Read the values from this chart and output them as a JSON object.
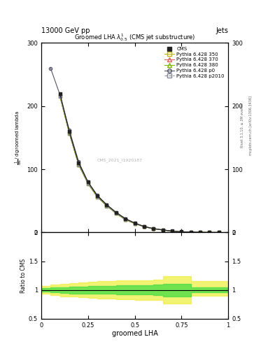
{
  "title_top": "13000 GeV pp",
  "title_right": "Jets",
  "plot_title": "Groomed LHA $\\lambda^{1}_{0.5}$ (CMS jet substructure)",
  "xlabel": "groomed LHA",
  "ylabel_ratio": "Ratio to CMS",
  "right_label1": "Rivet 3.1.10, ≥ 3M events",
  "right_label2": "mcplots.cern.ch [arXiv:1306.3436]",
  "watermark": "CMS_2021_I1920187",
  "x_data": [
    0.05,
    0.1,
    0.15,
    0.2,
    0.25,
    0.3,
    0.35,
    0.4,
    0.45,
    0.5,
    0.55,
    0.6,
    0.65,
    0.7,
    0.75,
    0.8,
    0.85,
    0.9,
    0.95
  ],
  "cms_y": [
    0.0,
    220,
    160,
    110,
    80,
    58,
    44,
    32,
    22,
    15,
    9.5,
    6.2,
    4.1,
    2.2,
    1.1,
    0.55,
    0.22,
    0.1,
    0.05
  ],
  "cms_color": "#222222",
  "p350_y": [
    0.0,
    215,
    157,
    107,
    77,
    56,
    42,
    30,
    20,
    14,
    9.0,
    5.8,
    3.9,
    2.0,
    1.0,
    0.5,
    0.2,
    0.09,
    0.04
  ],
  "p350_color": "#b8b800",
  "p370_y": [
    0.0,
    217,
    158,
    108,
    78,
    57,
    43,
    31,
    21,
    14.5,
    9.2,
    5.9,
    4.0,
    2.05,
    1.02,
    0.51,
    0.21,
    0.095,
    0.045
  ],
  "p370_color": "#e06060",
  "p380_y": [
    0.0,
    216,
    157,
    107,
    77.5,
    56.5,
    42.5,
    30.5,
    20.5,
    14.2,
    9.1,
    5.85,
    3.95,
    2.02,
    1.01,
    0.505,
    0.205,
    0.092,
    0.042
  ],
  "p380_color": "#7db800",
  "p_p0_y": [
    260,
    218,
    162,
    112,
    80,
    59,
    44,
    31.5,
    21.5,
    14.8,
    9.4,
    6.0,
    4.05,
    2.1,
    1.05,
    0.52,
    0.21,
    0.1,
    0.048
  ],
  "p_p0_color": "#555566",
  "p_p2010_y": [
    0.0,
    215,
    157,
    107,
    77,
    56,
    42,
    30,
    20,
    14,
    9.0,
    5.8,
    3.9,
    2.0,
    1.0,
    0.5,
    0.2,
    0.09,
    0.04
  ],
  "p_p2010_color": "#888899",
  "ylim_main": [
    0,
    300
  ],
  "yticks_main": [
    0,
    100,
    200,
    300
  ],
  "ylim_ratio": [
    0.5,
    2.0
  ],
  "xlim": [
    0.0,
    1.0
  ],
  "ratio_x_edges": [
    0.0,
    0.05,
    0.1,
    0.15,
    0.2,
    0.25,
    0.3,
    0.35,
    0.4,
    0.45,
    0.5,
    0.55,
    0.6,
    0.65,
    0.7,
    0.75,
    0.8,
    0.85,
    0.9,
    0.95,
    1.0
  ],
  "ratio_yellow_lo": [
    0.93,
    0.91,
    0.89,
    0.88,
    0.87,
    0.86,
    0.85,
    0.85,
    0.84,
    0.84,
    0.83,
    0.83,
    0.82,
    0.77,
    0.77,
    0.77,
    0.9,
    0.9,
    0.9,
    0.9
  ],
  "ratio_yellow_hi": [
    1.07,
    1.09,
    1.11,
    1.12,
    1.13,
    1.14,
    1.15,
    1.15,
    1.16,
    1.16,
    1.17,
    1.17,
    1.18,
    1.24,
    1.24,
    1.24,
    1.15,
    1.15,
    1.15,
    1.15
  ],
  "ratio_green_lo": [
    0.97,
    0.96,
    0.95,
    0.94,
    0.94,
    0.93,
    0.93,
    0.93,
    0.92,
    0.92,
    0.92,
    0.92,
    0.91,
    0.89,
    0.89,
    0.89,
    0.96,
    0.96,
    0.96,
    0.96
  ],
  "ratio_green_hi": [
    1.03,
    1.04,
    1.05,
    1.06,
    1.06,
    1.07,
    1.07,
    1.07,
    1.08,
    1.08,
    1.08,
    1.08,
    1.09,
    1.11,
    1.11,
    1.11,
    1.04,
    1.04,
    1.04,
    1.04
  ]
}
